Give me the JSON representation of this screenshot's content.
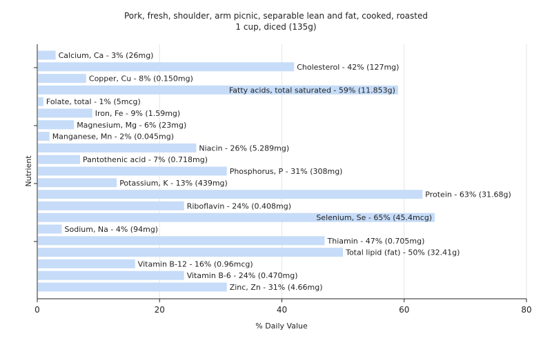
{
  "chart_data": {
    "type": "bar",
    "orientation": "horizontal",
    "title": "Pork, fresh, shoulder, arm picnic, separable lean and fat, cooked, roasted",
    "subtitle": "1 cup, diced (135g)",
    "xlabel": "% Daily Value",
    "ylabel": "Nutrient",
    "xlim": [
      0,
      80
    ],
    "xticks": [
      0,
      20,
      40,
      60,
      80
    ],
    "grid": true,
    "legend": "none",
    "bar_color": "#c6dcf8",
    "categories": [
      "Calcium, Ca",
      "Cholesterol",
      "Copper, Cu",
      "Fatty acids, total saturated",
      "Folate, total",
      "Iron, Fe",
      "Magnesium, Mg",
      "Manganese, Mn",
      "Niacin",
      "Pantothenic acid",
      "Phosphorus, P",
      "Potassium, K",
      "Protein",
      "Riboflavin",
      "Selenium, Se",
      "Sodium, Na",
      "Thiamin",
      "Total lipid (fat)",
      "Vitamin B-12",
      "Vitamin B-6",
      "Zinc, Zn"
    ],
    "values": [
      3,
      42,
      8,
      59,
      1,
      9,
      6,
      2,
      26,
      7,
      31,
      13,
      63,
      24,
      65,
      4,
      47,
      50,
      16,
      24,
      31
    ],
    "labels": [
      "Calcium, Ca - 3% (26mg)",
      "Cholesterol - 42% (127mg)",
      "Copper, Cu - 8% (0.150mg)",
      "Fatty acids, total saturated - 59% (11.853g)",
      "Folate, total - 1% (5mcg)",
      "Iron, Fe - 9% (1.59mg)",
      "Magnesium, Mg - 6% (23mg)",
      "Manganese, Mn - 2% (0.045mg)",
      "Niacin - 26% (5.289mg)",
      "Pantothenic acid - 7% (0.718mg)",
      "Phosphorus, P - 31% (308mg)",
      "Potassium, K - 13% (439mg)",
      "Protein - 63% (31.68g)",
      "Riboflavin - 24% (0.408mg)",
      "Selenium, Se - 65% (45.4mcg)",
      "Sodium, Na - 4% (94mg)",
      "Thiamin - 47% (0.705mg)",
      "Total lipid (fat) - 50% (32.41g)",
      "Vitamin B-12 - 16% (0.96mcg)",
      "Vitamin B-6 - 24% (0.470mg)",
      "Zinc, Zn - 31% (4.66mg)"
    ]
  }
}
